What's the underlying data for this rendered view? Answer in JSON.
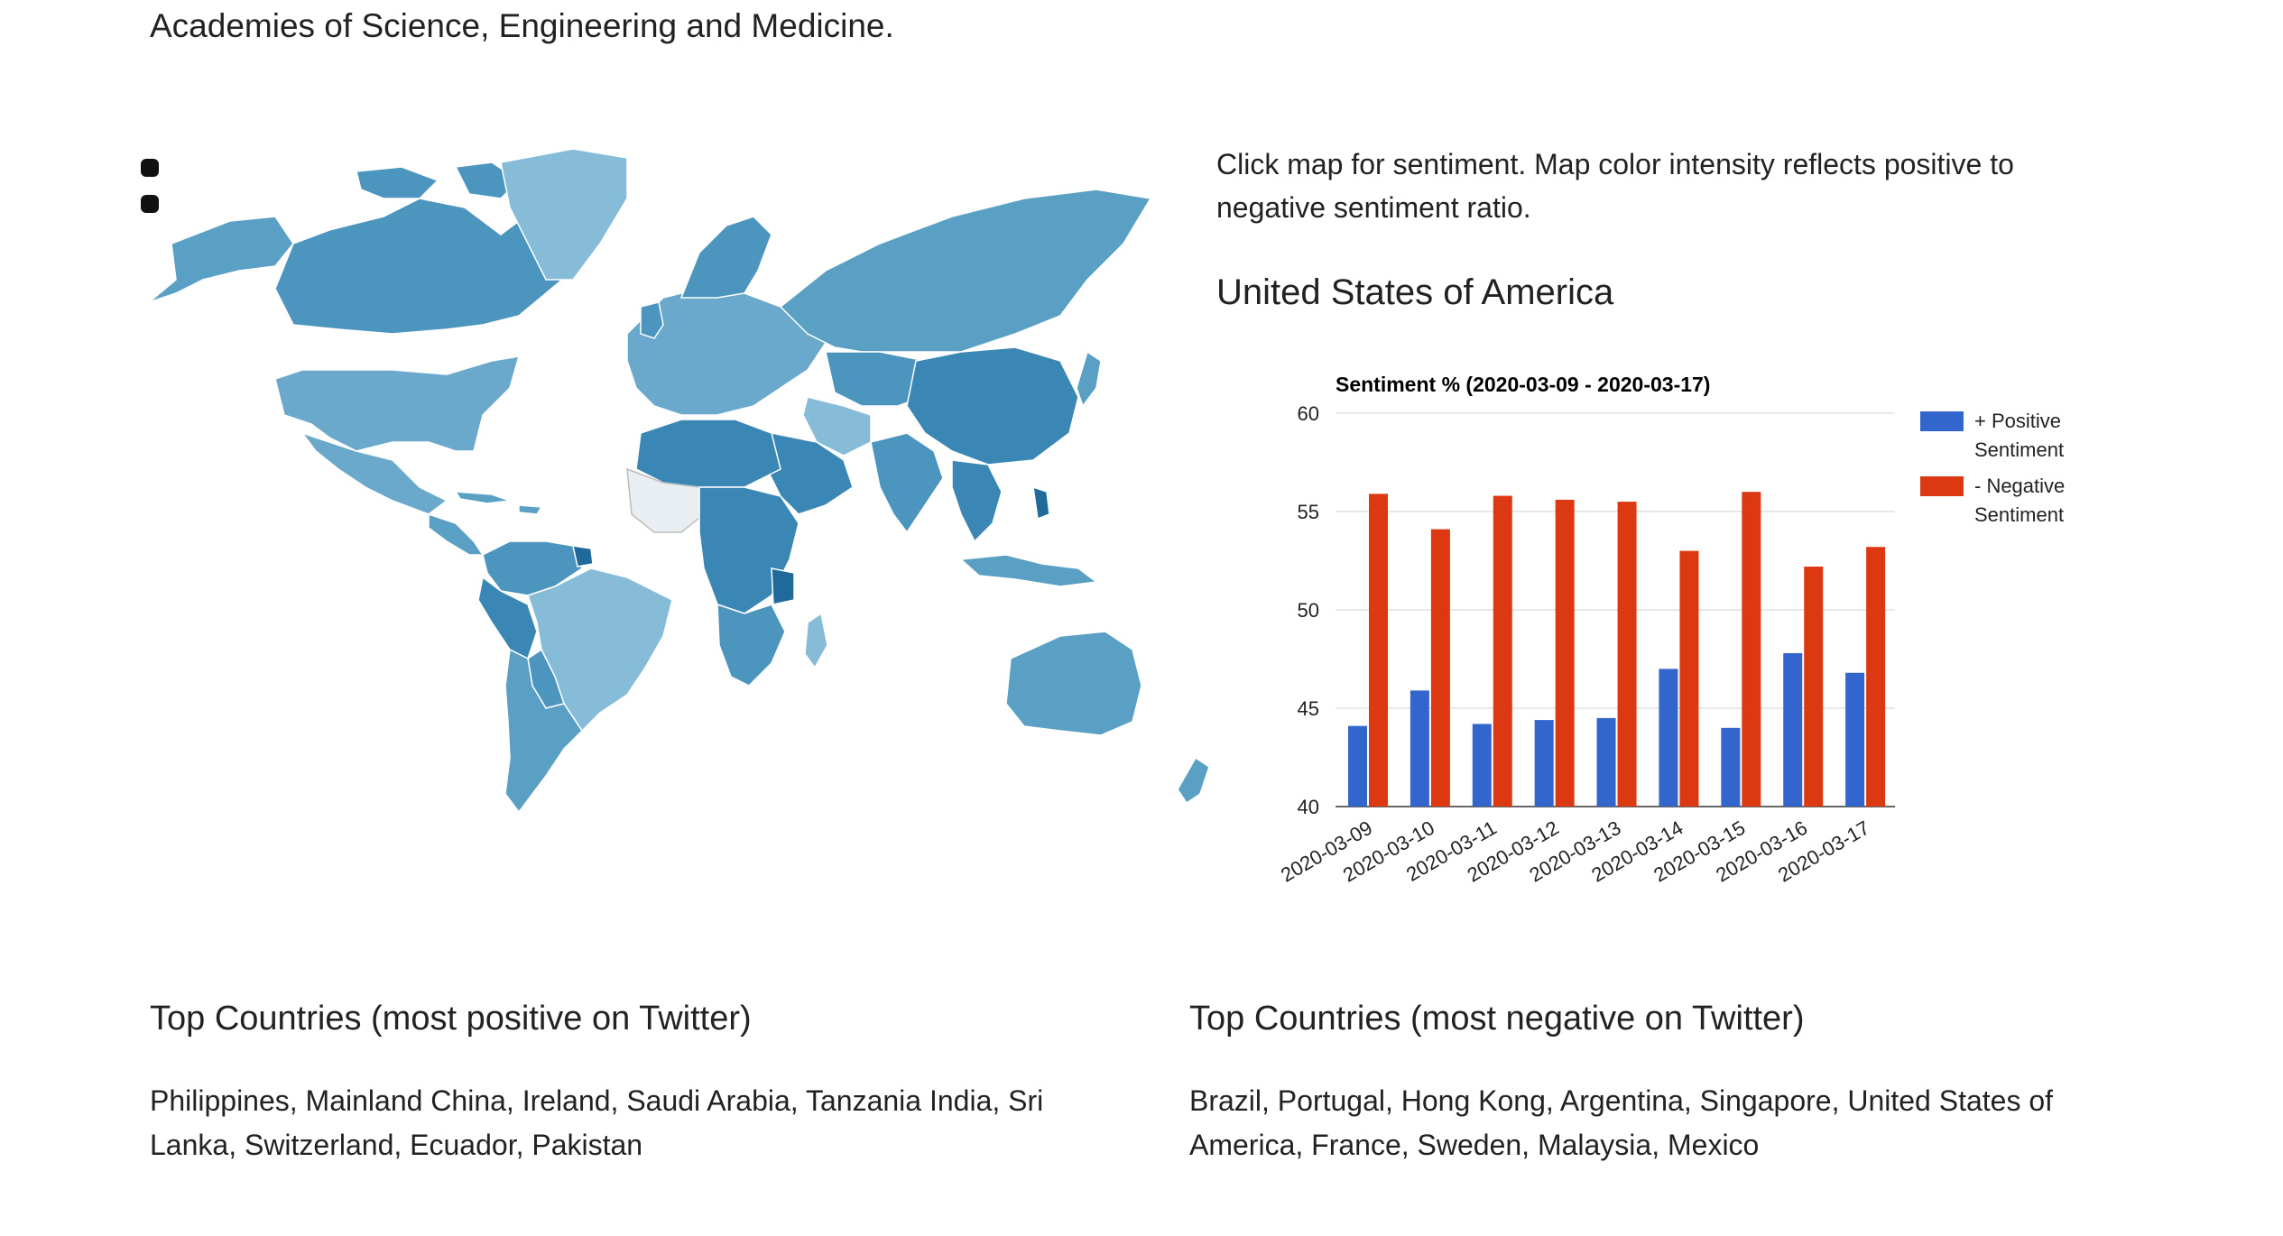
{
  "intro": {
    "text": "Academies of Science, Engineering and Medicine."
  },
  "map": {
    "zoom_in_icon": "zoom-in-icon",
    "zoom_out_icon": "zoom-out-icon",
    "colors": {
      "ocean": "#ffffff",
      "light": "#86bcd8",
      "mid": "#5aa0c4",
      "dark": "#3a86b4",
      "darkest": "#1f6a9a",
      "border": "#ffffff"
    }
  },
  "panel": {
    "instructions": "Click map for sentiment. Map color intensity reflects positive to negative sentiment ratio.",
    "country": "United States of America"
  },
  "chart_data": {
    "type": "bar",
    "title": "Sentiment % (2020-03-09 - 2020-03-17)",
    "categories": [
      "2020-03-09",
      "2020-03-10",
      "2020-03-11",
      "2020-03-12",
      "2020-03-13",
      "2020-03-14",
      "2020-03-15",
      "2020-03-16",
      "2020-03-17"
    ],
    "series": [
      {
        "name": "+ Positive Sentiment",
        "color": "#3366cc",
        "values": [
          44.1,
          45.9,
          44.2,
          44.4,
          44.5,
          47.0,
          44.0,
          47.8,
          46.8
        ]
      },
      {
        "name": "- Negative Sentiment",
        "color": "#dc3912",
        "values": [
          55.9,
          54.1,
          55.8,
          55.6,
          55.5,
          53.0,
          56.0,
          52.2,
          53.2
        ]
      }
    ],
    "legend_lines": [
      [
        "+ Positive",
        "Sentiment"
      ],
      [
        "- Negative",
        "Sentiment"
      ]
    ],
    "yticks": [
      "40",
      "45",
      "50",
      "55",
      "60"
    ],
    "ylim": [
      40,
      60
    ],
    "xlabel": "",
    "ylabel": "",
    "legend_position": "right"
  },
  "positive": {
    "heading": "Top Countries (most positive on Twitter)",
    "list": "Philippines, Mainland China, Ireland, Saudi Arabia, Tanzania India, Sri Lanka, Switzerland, Ecuador, Pakistan"
  },
  "negative": {
    "heading": "Top Countries (most negative on Twitter)",
    "list": "Brazil, Portugal, Hong Kong, Argentina, Singapore, United States of America, France, Sweden, Malaysia, Mexico"
  }
}
